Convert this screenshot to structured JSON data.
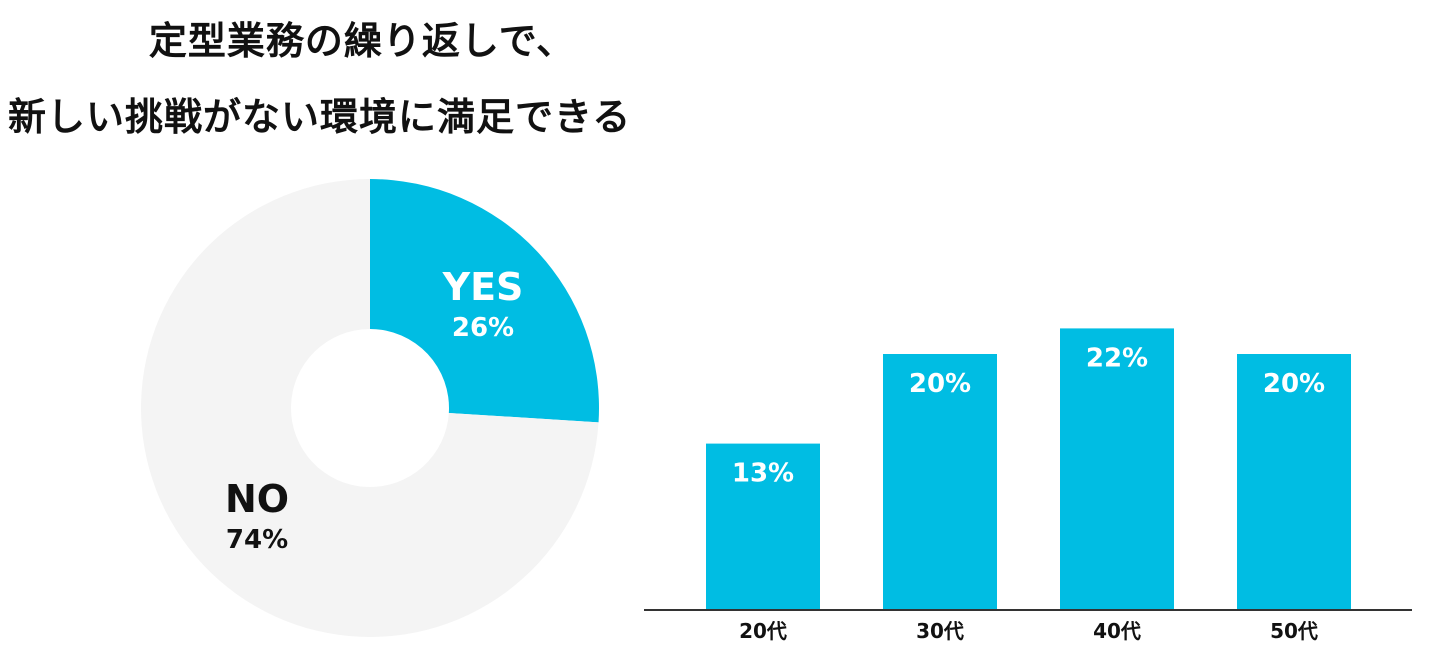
{
  "title_lines": [
    "定型業務の繰り返しで、",
    "新しい挑戦がない環境に満足できる"
  ],
  "colors": {
    "accent": "#00bde3",
    "muted": "#f4f4f4",
    "text": "#111111",
    "axis": "#333333"
  },
  "chart_data": [
    {
      "type": "pie",
      "donut": true,
      "slices": [
        {
          "label": "YES",
          "value": 26,
          "display": "26%",
          "color": "#00bde3"
        },
        {
          "label": "NO",
          "value": 74,
          "display": "74%",
          "color": "#f4f4f4"
        }
      ]
    },
    {
      "type": "bar",
      "categories": [
        "20代",
        "30代",
        "40代",
        "50代"
      ],
      "values": [
        13,
        20,
        22,
        20
      ],
      "value_labels": [
        "13%",
        "20%",
        "22%",
        "20%"
      ],
      "color": "#00bde3"
    }
  ]
}
